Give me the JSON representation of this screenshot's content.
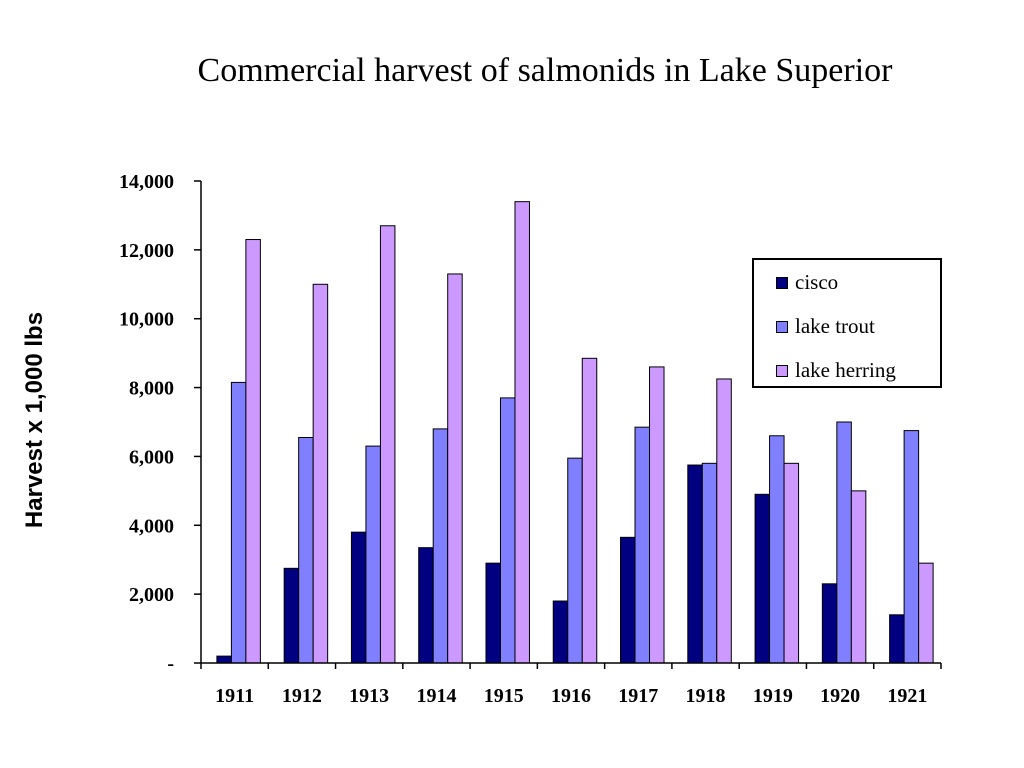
{
  "chart_data": {
    "type": "bar",
    "title": "Commercial harvest of salmonids in Lake Superior",
    "ylabel": "Harvest x 1,000 lbs",
    "xlabel": "",
    "categories": [
      "1911",
      "1912",
      "1913",
      "1914",
      "1915",
      "1916",
      "1917",
      "1918",
      "1919",
      "1920",
      "1921"
    ],
    "ylim": [
      0,
      14000
    ],
    "yticks": [
      {
        "value": 0,
        "label": "-"
      },
      {
        "value": 2000,
        "label": "2,000"
      },
      {
        "value": 4000,
        "label": "4,000"
      },
      {
        "value": 6000,
        "label": "6,000"
      },
      {
        "value": 8000,
        "label": "8,000"
      },
      {
        "value": 10000,
        "label": "10,000"
      },
      {
        "value": 12000,
        "label": "12,000"
      },
      {
        "value": 14000,
        "label": "14,000"
      }
    ],
    "series": [
      {
        "name": "cisco",
        "color": "#000080",
        "values": [
          200,
          2750,
          3800,
          3350,
          2900,
          1800,
          3650,
          5750,
          4900,
          2300,
          1400
        ]
      },
      {
        "name": "lake trout",
        "color": "#8080ff",
        "values": [
          8150,
          6550,
          6300,
          6800,
          7700,
          5950,
          6850,
          5800,
          6600,
          7000,
          6750
        ]
      },
      {
        "name": "lake herring",
        "color": "#cc99ff",
        "values": [
          12300,
          11000,
          12700,
          11300,
          13400,
          8850,
          8600,
          8250,
          5800,
          5000,
          2900
        ]
      }
    ],
    "legend_position": "right",
    "grid": false
  }
}
